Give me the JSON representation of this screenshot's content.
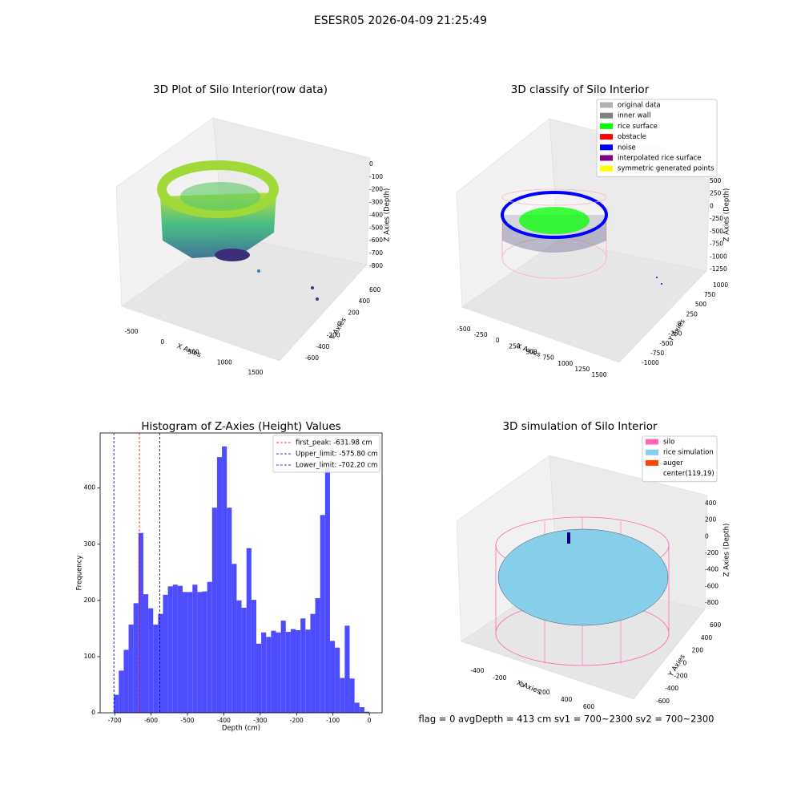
{
  "title": "ESESR05 2026-04-09 21:25:49",
  "chart_data": [
    {
      "type": "scatter3d",
      "title": "3D Plot of Silo Interior(row data)",
      "xlabel": "X Axies",
      "ylabel": "Y Axies",
      "zlabel": "Z Axies (Depth)",
      "xlim": [
        -650,
        1700
      ],
      "xticks": [
        -500,
        0,
        500,
        1000,
        1500
      ],
      "ylim": [
        -700,
        700
      ],
      "yticks": [
        -600,
        -400,
        -200,
        0,
        200,
        400,
        600
      ],
      "zlim": [
        -870,
        50
      ],
      "zticks": [
        0,
        -100,
        -200,
        -300,
        -400,
        -500,
        -600,
        -700,
        -800
      ]
    },
    {
      "type": "scatter3d",
      "title": "3D classify of Silo Interior",
      "xlabel": "X Axies",
      "ylabel": "Y Axies",
      "zlabel": "Z Axies (Depth)",
      "xlim": [
        -650,
        1650
      ],
      "xticks": [
        -500,
        -250,
        0,
        250,
        500,
        750,
        1000,
        1250,
        1500
      ],
      "ylim": [
        -1150,
        1150
      ],
      "yticks": [
        -1000,
        -750,
        -500,
        -250,
        0,
        250,
        500,
        750,
        1000
      ],
      "zlim": [
        -1350,
        600
      ],
      "zticks": [
        500,
        250,
        0,
        -250,
        -500,
        -750,
        -1000,
        -1250
      ],
      "legend": [
        {
          "name": "original data",
          "color": "#b0b0b0"
        },
        {
          "name": "inner wall",
          "color": "#808080"
        },
        {
          "name": "rice surface",
          "color": "#00ff00"
        },
        {
          "name": "obstacle",
          "color": "#ff0000"
        },
        {
          "name": "noise",
          "color": "#0000ff"
        },
        {
          "name": "interpolated rice surface",
          "color": "#800080"
        },
        {
          "name": "symmetric generated points",
          "color": "#ffff00"
        }
      ]
    },
    {
      "type": "histogram",
      "title": "Histogram of Z-Axies (Height) Values",
      "xlabel": "Depth (cm)",
      "ylabel": "Frequency",
      "color": "#4d4dff",
      "bins": [
        -702.2,
        -688.7,
        -675.2,
        -661.7,
        -648.2,
        -634.7,
        -621.2,
        -607.7,
        -594.2,
        -580.7,
        -567.2,
        -553.7,
        -540.2,
        -526.7,
        -513.2,
        -499.7,
        -486.2,
        -472.7,
        -459.2,
        -445.7,
        -432.2,
        -418.7,
        -405.2,
        -391.7,
        -378.2,
        -364.7,
        -351.2,
        -337.7,
        -324.2,
        -310.7,
        -297.2,
        -283.7,
        -270.2,
        -256.7,
        -243.2,
        -229.7,
        -216.2,
        -202.7,
        -189.2,
        -175.7,
        -162.2,
        -148.7,
        -135.2,
        -121.7,
        -108.2,
        -94.7,
        -81.2,
        -67.7,
        -54.2,
        -40.7,
        -27.2,
        -13.7,
        -0.2
      ],
      "values": [
        32,
        75,
        112,
        157,
        195,
        320,
        211,
        186,
        157,
        176,
        210,
        225,
        228,
        226,
        215,
        215,
        228,
        215,
        216,
        233,
        365,
        455,
        474,
        365,
        265,
        200,
        187,
        293,
        201,
        123,
        143,
        135,
        146,
        143,
        164,
        144,
        149,
        147,
        168,
        148,
        176,
        204,
        352,
        436,
        128,
        116,
        62,
        155,
        61,
        18,
        10,
        2
      ],
      "xlim": [
        -740,
        35
      ],
      "xticks": [
        -700,
        -600,
        -500,
        -400,
        -300,
        -200,
        -100,
        0
      ],
      "ylim": [
        0,
        498
      ],
      "yticks": [
        0,
        100,
        200,
        300,
        400
      ],
      "vlines": [
        {
          "name": "first_peak: -631.98 cm",
          "value": -631.98,
          "color": "#ff0000"
        },
        {
          "name": "Upper_limit: -575.80 cm",
          "value": -575.8,
          "color": "#0000aa"
        },
        {
          "name": "Lower_limit: -702.20 cm",
          "value": -702.2,
          "color": "#0000aa"
        }
      ],
      "legend_loc": "upper right"
    },
    {
      "type": "surface3d",
      "title": "3D simulation of Silo Interior",
      "xlabel": "X Axies",
      "ylabel": "Y Axies",
      "zlabel": "Z Axies (Depth)",
      "xlim": [
        -520,
        720
      ],
      "xticks": [
        -400,
        -200,
        0,
        200,
        400,
        600
      ],
      "ylim": [
        -700,
        700
      ],
      "yticks": [
        -600,
        -400,
        -200,
        0,
        200,
        400,
        600
      ],
      "zlim": [
        -900,
        500
      ],
      "zticks": [
        400,
        200,
        0,
        -200,
        -400,
        -600,
        -800
      ],
      "legend": [
        {
          "name": "silo",
          "color": "#ff69b4"
        },
        {
          "name": "rice simulation",
          "color": "#87ceeb"
        },
        {
          "name": "auger",
          "color": "#ff4500"
        },
        {
          "name": "center(119,19)"
        }
      ]
    }
  ],
  "footer": "flag = 0     avgDepth = 413 cm  sv1 = 700~2300  sv2 = 700~2300"
}
